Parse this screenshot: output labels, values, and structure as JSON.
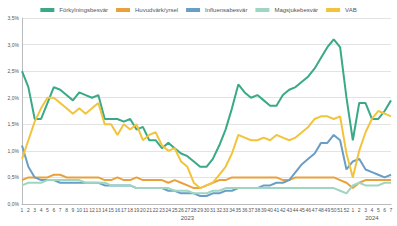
{
  "chart_data": {
    "type": "line",
    "categories": [
      "1",
      "2",
      "3",
      "4",
      "5",
      "6",
      "7",
      "8",
      "9",
      "10",
      "11",
      "12",
      "13",
      "14",
      "15",
      "16",
      "17",
      "18",
      "19",
      "20",
      "21",
      "22",
      "23",
      "24",
      "25",
      "26",
      "27",
      "28",
      "29",
      "30",
      "31",
      "32",
      "33",
      "34",
      "35",
      "36",
      "37",
      "38",
      "39",
      "40",
      "41",
      "42",
      "43",
      "44",
      "45",
      "46",
      "47",
      "48",
      "49",
      "50",
      "51",
      "52",
      "1",
      "2",
      "3",
      "4",
      "5",
      "6",
      "7"
    ],
    "annotations": [
      "2023",
      "2024"
    ],
    "series": [
      {
        "name": "Förkylningsbesvär",
        "color": "#3aa987",
        "values": [
          2.5,
          2.2,
          1.6,
          1.6,
          1.9,
          2.2,
          2.15,
          2.05,
          1.95,
          2.1,
          2.05,
          2.0,
          2.05,
          1.6,
          1.6,
          1.6,
          1.55,
          1.6,
          1.4,
          1.45,
          1.2,
          1.2,
          1.05,
          1.15,
          1.05,
          0.95,
          0.9,
          0.8,
          0.7,
          0.7,
          0.85,
          1.1,
          1.4,
          1.8,
          2.25,
          2.1,
          2.0,
          2.05,
          1.95,
          1.85,
          1.85,
          2.05,
          2.15,
          2.2,
          2.3,
          2.4,
          2.55,
          2.75,
          2.95,
          3.1,
          2.95,
          2.0,
          1.2,
          1.9,
          1.9,
          1.6,
          1.6,
          1.75,
          1.95
        ]
      },
      {
        "name": "Huvudvärk/yrsel",
        "color": "#e9a23b",
        "values": [
          0.45,
          0.5,
          0.5,
          0.5,
          0.5,
          0.55,
          0.55,
          0.5,
          0.5,
          0.5,
          0.5,
          0.5,
          0.5,
          0.45,
          0.45,
          0.5,
          0.45,
          0.45,
          0.5,
          0.45,
          0.45,
          0.45,
          0.45,
          0.4,
          0.45,
          0.4,
          0.35,
          0.3,
          0.3,
          0.35,
          0.4,
          0.45,
          0.45,
          0.5,
          0.5,
          0.5,
          0.5,
          0.5,
          0.5,
          0.5,
          0.5,
          0.45,
          0.45,
          0.5,
          0.5,
          0.5,
          0.5,
          0.5,
          0.5,
          0.5,
          0.45,
          0.4,
          0.3,
          0.4,
          0.45,
          0.45,
          0.45,
          0.45,
          0.45
        ]
      },
      {
        "name": "Influensabesvär",
        "color": "#6a9ec6",
        "values": [
          1.1,
          0.7,
          0.5,
          0.45,
          0.45,
          0.45,
          0.4,
          0.4,
          0.4,
          0.4,
          0.4,
          0.4,
          0.4,
          0.35,
          0.35,
          0.35,
          0.35,
          0.35,
          0.3,
          0.3,
          0.3,
          0.3,
          0.3,
          0.25,
          0.25,
          0.2,
          0.2,
          0.2,
          0.15,
          0.15,
          0.2,
          0.2,
          0.25,
          0.25,
          0.3,
          0.3,
          0.3,
          0.3,
          0.35,
          0.35,
          0.4,
          0.4,
          0.45,
          0.6,
          0.75,
          0.85,
          0.95,
          1.15,
          1.15,
          1.3,
          1.2,
          0.65,
          0.8,
          0.85,
          0.65,
          0.6,
          0.55,
          0.5,
          0.55
        ]
      },
      {
        "name": "Magsjukebesvär",
        "color": "#9ed6c2",
        "values": [
          0.35,
          0.4,
          0.4,
          0.4,
          0.45,
          0.45,
          0.45,
          0.45,
          0.45,
          0.45,
          0.4,
          0.4,
          0.4,
          0.4,
          0.35,
          0.35,
          0.35,
          0.35,
          0.3,
          0.3,
          0.3,
          0.3,
          0.3,
          0.3,
          0.25,
          0.25,
          0.25,
          0.2,
          0.2,
          0.2,
          0.25,
          0.25,
          0.3,
          0.3,
          0.3,
          0.3,
          0.3,
          0.3,
          0.3,
          0.3,
          0.3,
          0.3,
          0.3,
          0.3,
          0.3,
          0.3,
          0.3,
          0.3,
          0.3,
          0.3,
          0.25,
          0.2,
          0.35,
          0.4,
          0.35,
          0.35,
          0.35,
          0.4,
          0.4
        ]
      },
      {
        "name": "VAB",
        "color": "#f1c43c",
        "values": [
          0.85,
          1.2,
          1.55,
          1.8,
          2.0,
          2.0,
          1.9,
          1.8,
          1.7,
          1.8,
          1.7,
          1.8,
          1.9,
          1.5,
          1.5,
          1.3,
          1.5,
          1.4,
          1.5,
          1.2,
          1.3,
          1.35,
          1.1,
          1.0,
          1.05,
          0.8,
          0.7,
          0.4,
          0.3,
          0.35,
          0.4,
          0.55,
          0.7,
          0.95,
          1.3,
          1.25,
          1.2,
          1.2,
          1.25,
          1.2,
          1.3,
          1.25,
          1.2,
          1.25,
          1.35,
          1.45,
          1.6,
          1.65,
          1.65,
          1.6,
          1.65,
          0.95,
          0.5,
          1.0,
          1.35,
          1.6,
          1.75,
          1.7,
          1.65
        ]
      }
    ],
    "ylim": [
      0,
      3.5
    ],
    "yticks": [
      {
        "value": 0,
        "label": "0,0%"
      },
      {
        "value": 0.5,
        "label": "0,5%"
      },
      {
        "value": 1,
        "label": "1,0%"
      },
      {
        "value": 1.5,
        "label": "1,5%"
      },
      {
        "value": 2,
        "label": "2,0%"
      },
      {
        "value": 2.5,
        "label": "2,5%"
      },
      {
        "value": 3,
        "label": "3,0%"
      },
      {
        "value": 3.5,
        "label": "3,5%"
      }
    ],
    "grid": true,
    "legend": "top"
  }
}
